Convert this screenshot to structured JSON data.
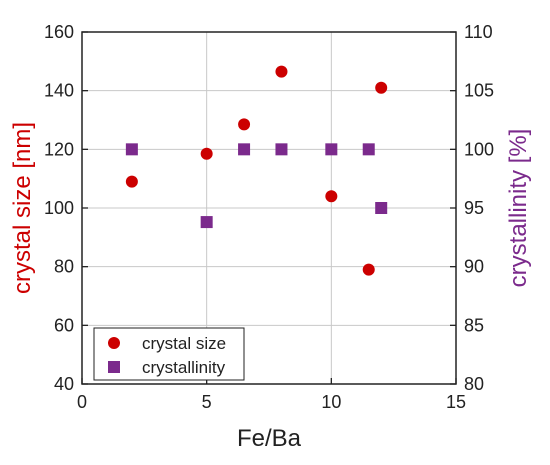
{
  "chart_data": {
    "type": "scatter",
    "title": "",
    "xlabel": "Fe/Ba",
    "ylabel_left": "crystal size [nm]",
    "ylabel_right": "crystallinity [%]",
    "xlim": [
      0,
      15
    ],
    "ylim_left": [
      40,
      160
    ],
    "ylim_right": [
      80,
      110
    ],
    "x_ticks": [
      0,
      5,
      10,
      15
    ],
    "y_left_ticks": [
      40,
      60,
      80,
      100,
      120,
      140,
      160
    ],
    "y_right_ticks": [
      80,
      85,
      90,
      95,
      100,
      105,
      110
    ],
    "grid": true,
    "legend_position": "bottom-left",
    "series": [
      {
        "name": "crystal size",
        "axis": "left",
        "marker": "circle",
        "color": "#cc0000",
        "points": [
          {
            "x": 2,
            "y": 109
          },
          {
            "x": 5,
            "y": 118.5
          },
          {
            "x": 6.5,
            "y": 128.5
          },
          {
            "x": 8,
            "y": 146.5
          },
          {
            "x": 10,
            "y": 104
          },
          {
            "x": 11.5,
            "y": 79
          },
          {
            "x": 12,
            "y": 141
          }
        ]
      },
      {
        "name": "crystallinity",
        "axis": "right",
        "marker": "square",
        "color": "#7b2a8c",
        "points": [
          {
            "x": 2,
            "y": 100
          },
          {
            "x": 5,
            "y": 93.8
          },
          {
            "x": 6.5,
            "y": 100
          },
          {
            "x": 8,
            "y": 100
          },
          {
            "x": 10,
            "y": 100
          },
          {
            "x": 11.5,
            "y": 100
          },
          {
            "x": 12,
            "y": 95
          }
        ]
      }
    ]
  }
}
